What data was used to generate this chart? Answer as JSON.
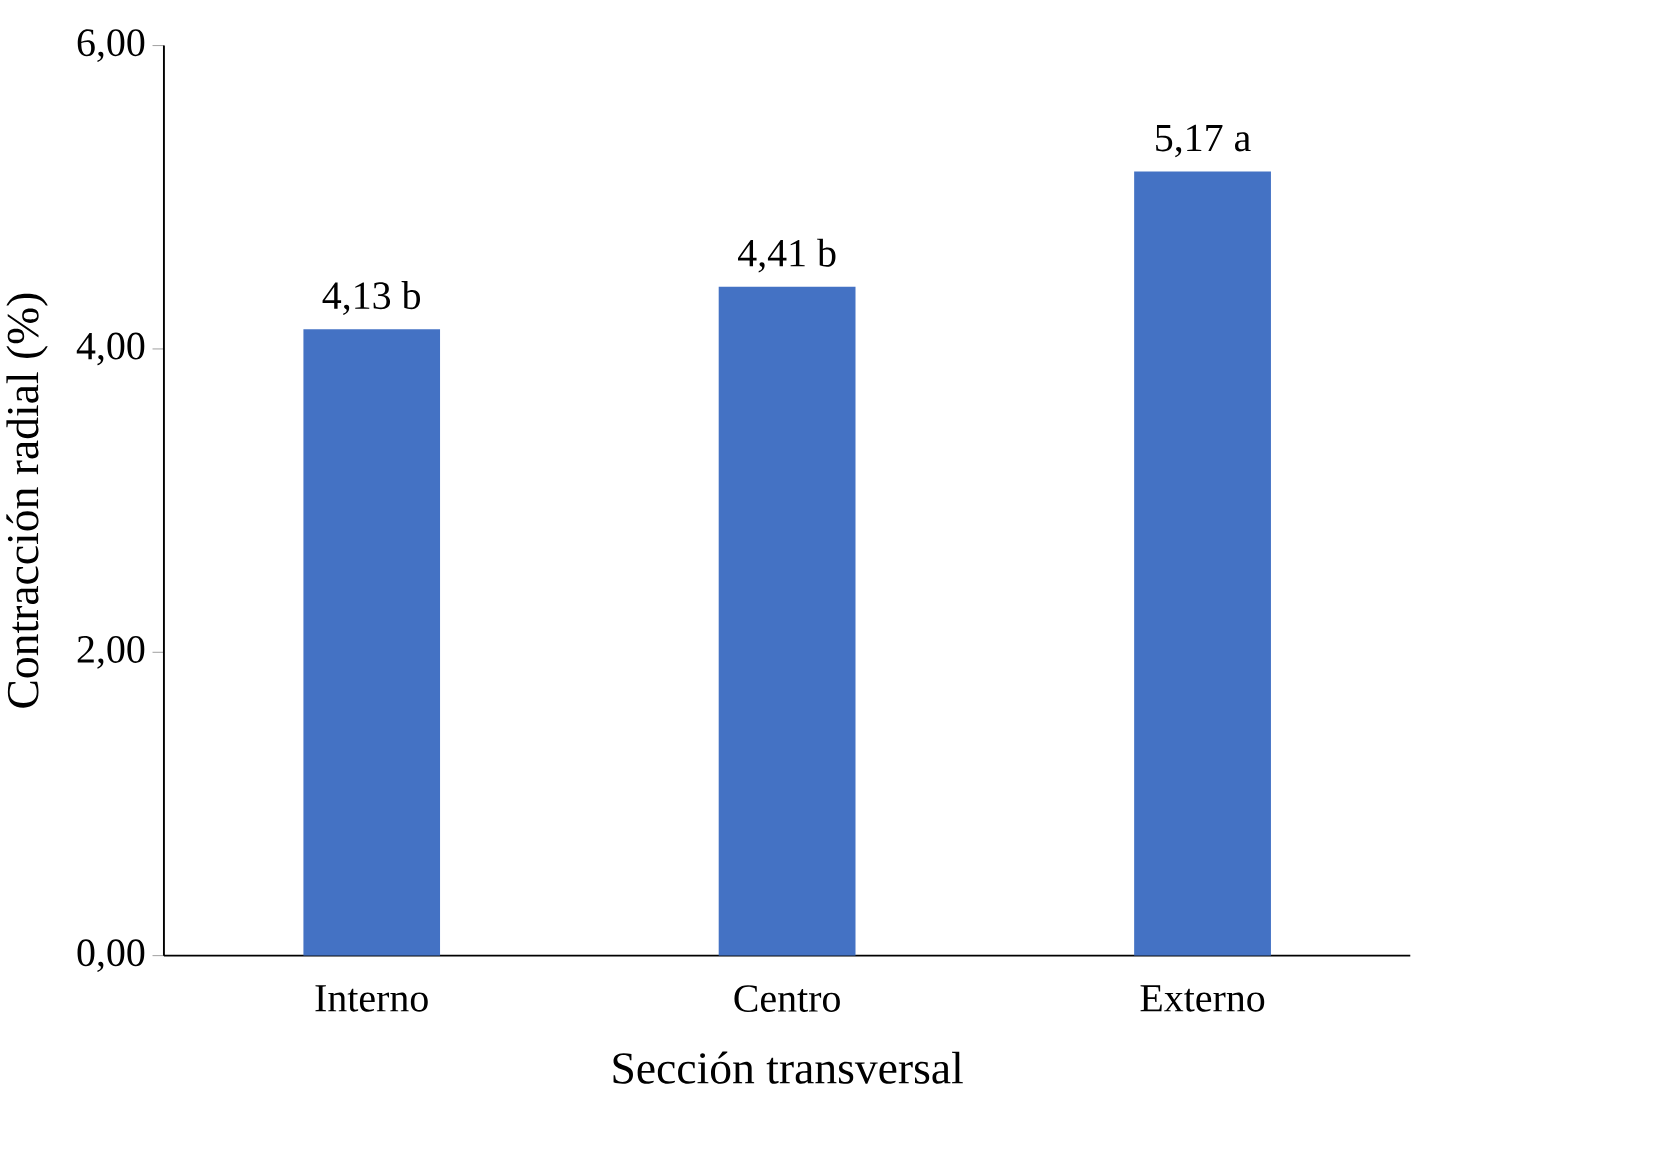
{
  "chart_data": {
    "type": "bar",
    "xlabel": "Sección transversal",
    "ylabel": "Contracción radial (%)",
    "categories": [
      "Interno",
      "Centro",
      "Externo"
    ],
    "values": [
      4.13,
      4.41,
      5.17
    ],
    "value_labels": [
      "4,13 b",
      "4,41 b",
      "5,17 a"
    ],
    "color": "#4472c4",
    "ylim": [
      0,
      6
    ],
    "yticks": [
      {
        "value": 0,
        "label": "0,00"
      },
      {
        "value": 2,
        "label": "2,00"
      },
      {
        "value": 4,
        "label": "4,00"
      },
      {
        "value": 6,
        "label": "6,00"
      }
    ],
    "grid": false
  }
}
